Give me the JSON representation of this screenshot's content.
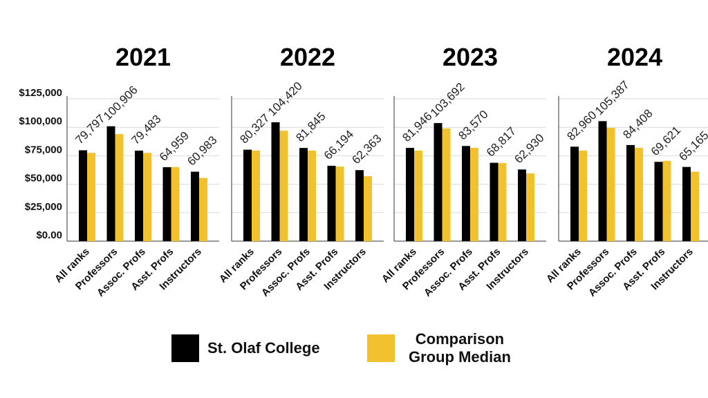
{
  "colors": {
    "st_olaf": "#000000",
    "comparison": "#f2c12e",
    "grid": "#d9d9d9",
    "axis": "#333333"
  },
  "legend": {
    "st_olaf_label": "St. Olaf College",
    "comparison_line1": "Comparison",
    "comparison_line2": "Group Median"
  },
  "y_axis": {
    "ticks": [
      "$0.00",
      "$25,000",
      "$50,000",
      "$75,000",
      "$100,000",
      "$125,000"
    ]
  },
  "chart_data": [
    {
      "type": "bar",
      "title": "2021",
      "categories": [
        "All ranks",
        "Professors",
        "Assoc. Profs",
        "Asst. Profs",
        "Instructors"
      ],
      "ylim": [
        0,
        125000
      ],
      "grid": true,
      "series": [
        {
          "name": "St. Olaf College",
          "values": [
            79797,
            100906,
            79483,
            64959,
            60983
          ]
        },
        {
          "name": "Comparison Group Median",
          "values": [
            77500,
            94000,
            77500,
            65000,
            55500
          ]
        }
      ],
      "data_labels": [
        "79,797",
        "100,906",
        "79,483",
        "64,959",
        "60,983"
      ]
    },
    {
      "type": "bar",
      "title": "2022",
      "categories": [
        "All ranks",
        "Professors",
        "Assoc. Profs",
        "Asst. Profs",
        "Instructors"
      ],
      "ylim": [
        0,
        125000
      ],
      "grid": true,
      "series": [
        {
          "name": "St. Olaf College",
          "values": [
            80327,
            104420,
            81845,
            66194,
            62363
          ]
        },
        {
          "name": "Comparison Group Median",
          "values": [
            79500,
            97000,
            79500,
            65500,
            57000
          ]
        }
      ],
      "data_labels": [
        "80,327",
        "104,420",
        "81,845",
        "66,194",
        "62,363"
      ]
    },
    {
      "type": "bar",
      "title": "2023",
      "categories": [
        "All ranks",
        "Professors",
        "Assoc. Profs",
        "Asst. Profs",
        "Instructors"
      ],
      "ylim": [
        0,
        125000
      ],
      "grid": true,
      "series": [
        {
          "name": "St. Olaf College",
          "values": [
            81946,
            103692,
            83570,
            68817,
            62930
          ]
        },
        {
          "name": "Comparison Group Median",
          "values": [
            79500,
            99000,
            82000,
            68500,
            59500
          ]
        }
      ],
      "data_labels": [
        "81,946",
        "103,692",
        "83,570",
        "68,817",
        "62,930"
      ]
    },
    {
      "type": "bar",
      "title": "2024",
      "categories": [
        "All ranks",
        "Professors",
        "Assoc. Profs",
        "Asst. Profs",
        "Instructors"
      ],
      "ylim": [
        0,
        125000
      ],
      "grid": true,
      "series": [
        {
          "name": "St. Olaf College",
          "values": [
            82960,
            105387,
            84408,
            69621,
            65165
          ]
        },
        {
          "name": "Comparison Group Median",
          "values": [
            79500,
            99500,
            82000,
            70500,
            61000
          ]
        }
      ],
      "data_labels": [
        "82,960",
        "105,387",
        "84,408",
        "69,621",
        "65,165"
      ]
    }
  ]
}
